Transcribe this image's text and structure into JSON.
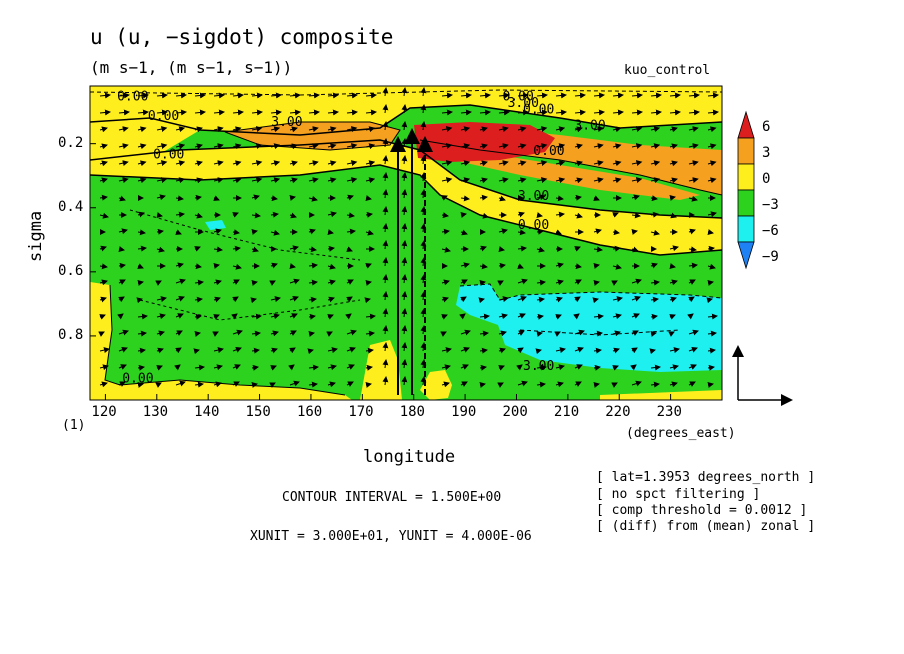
{
  "header": {
    "title": "u (u, −sigdot) composite",
    "subtitle": "(m s−1, (m s−1, s−1))",
    "run_name": "kuo_control"
  },
  "chart_data": {
    "type": "heatmap",
    "title": "u (u, −sigdot) composite",
    "xlabel": "longitude",
    "xunits": "(degrees_east)",
    "ylabel": "sigma",
    "xlim": [
      117,
      240
    ],
    "ylim": [
      1.0,
      0.02
    ],
    "y_inverted": true,
    "x_ticks": [
      120,
      130,
      140,
      150,
      160,
      170,
      180,
      190,
      200,
      210,
      220,
      230
    ],
    "y_ticks": [
      0.2,
      0.4,
      0.6,
      0.8
    ],
    "y_axis_footer": "(1)",
    "contour_labels": [
      {
        "x": 125,
        "y": 0.05,
        "text": "0.00"
      },
      {
        "x": 131,
        "y": 0.11,
        "text": "0.00"
      },
      {
        "x": 132,
        "y": 0.23,
        "text": "0.00"
      },
      {
        "x": 155,
        "y": 0.13,
        "text": "3.00"
      },
      {
        "x": 200,
        "y": 0.05,
        "text": "0.00"
      },
      {
        "x": 201,
        "y": 0.07,
        "text": "3.00"
      },
      {
        "x": 204,
        "y": 0.09,
        "text": "0.00"
      },
      {
        "x": 206,
        "y": 0.22,
        "text": "0.00"
      },
      {
        "x": 214,
        "y": 0.14,
        "text": "3.00"
      },
      {
        "x": 203,
        "y": 0.36,
        "text": "3.00"
      },
      {
        "x": 203,
        "y": 0.45,
        "text": "0.00"
      },
      {
        "x": 204,
        "y": 0.89,
        "text": "3.00"
      },
      {
        "x": 126,
        "y": 0.93,
        "text": "0.00"
      }
    ],
    "colorbar": {
      "labels": [
        "6",
        "3",
        "0",
        "−3",
        "−6",
        "−9"
      ],
      "colors": [
        "#dc1e1e",
        "#f5a01e",
        "#ffee1e",
        "#2dd21e",
        "#1ef0f0",
        "#1e82f5"
      ]
    },
    "contour_interval": "CONTOUR INTERVAL = 1.500E+00",
    "vector_units": "XUNIT = 3.000E+01, YUNIT = 4.000E-06",
    "info_lines": [
      "[ lat=1.3953 degrees_north ]",
      "[ no spct filtering ]",
      "[ comp threshold = 0.0012 ]",
      "[ (diff) from (mean) zonal ]"
    ]
  }
}
